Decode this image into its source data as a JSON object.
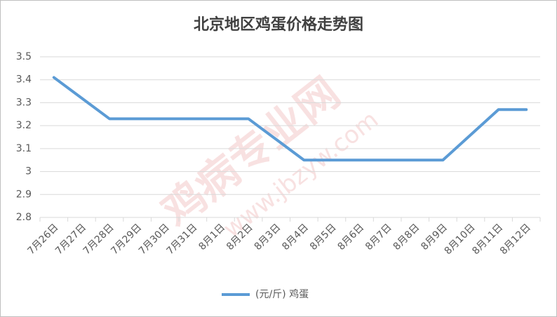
{
  "chart_data": {
    "type": "line",
    "title": "北京地区鸡蛋价格走势图",
    "categories": [
      "7月26日",
      "7月27日",
      "7月28日",
      "7月29日",
      "7月30日",
      "7月31日",
      "8月1日",
      "8月2日",
      "8月3日",
      "8月4日",
      "8月5日",
      "8月6日",
      "8月7日",
      "8月8日",
      "8月9日",
      "8月10日",
      "8月11日",
      "8月12日"
    ],
    "series": [
      {
        "name": "(元/斤) 鸡蛋",
        "color": "#5b9bd5",
        "values": [
          3.41,
          3.32,
          3.23,
          3.23,
          3.23,
          3.23,
          3.23,
          3.23,
          3.14,
          3.05,
          3.05,
          3.05,
          3.05,
          3.05,
          3.05,
          3.16,
          3.27,
          3.27
        ]
      }
    ],
    "ylim": [
      2.8,
      3.5
    ],
    "yticks": [
      2.8,
      2.9,
      3,
      3.1,
      3.2,
      3.3,
      3.4,
      3.5
    ],
    "grid": true,
    "legend": "bottom",
    "watermark": [
      "鸡病专业网",
      "www.jbzyw.com"
    ]
  }
}
